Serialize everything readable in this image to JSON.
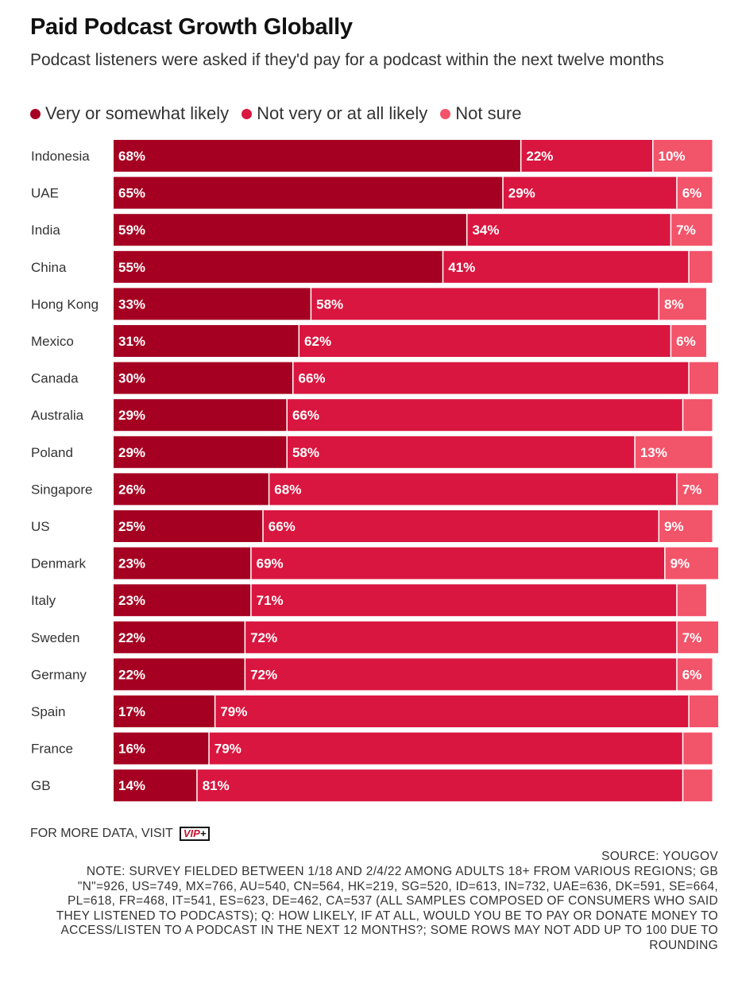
{
  "title": "Paid Podcast Growth Globally",
  "subtitle": "Podcast listeners were asked if they'd pay for a podcast within the next twelve months",
  "legend": [
    {
      "label": "Very or somewhat likely",
      "color": "#a50021"
    },
    {
      "label": "Not very or at all likely",
      "color": "#d9163f"
    },
    {
      "label": "Not sure",
      "color": "#f2546a"
    }
  ],
  "chart_data": {
    "type": "bar",
    "orientation": "horizontal",
    "stacked": true,
    "categories": [
      "Indonesia",
      "UAE",
      "India",
      "China",
      "Hong Kong",
      "Mexico",
      "Canada",
      "Australia",
      "Poland",
      "Singapore",
      "US",
      "Denmark",
      "Italy",
      "Sweden",
      "Germany",
      "Spain",
      "France",
      "GB"
    ],
    "series": [
      {
        "name": "Very or somewhat likely",
        "values": [
          68,
          65,
          59,
          55,
          33,
          31,
          30,
          29,
          29,
          26,
          25,
          23,
          23,
          22,
          22,
          17,
          16,
          14
        ]
      },
      {
        "name": "Not very or at all likely",
        "values": [
          22,
          29,
          34,
          41,
          58,
          62,
          66,
          66,
          58,
          68,
          66,
          69,
          71,
          72,
          72,
          79,
          79,
          81
        ]
      },
      {
        "name": "Not sure",
        "values": [
          10,
          6,
          7,
          4,
          8,
          6,
          5,
          5,
          13,
          7,
          9,
          9,
          5,
          7,
          6,
          5,
          5,
          5
        ]
      }
    ],
    "shown_labels": [
      [
        "68%",
        "22%",
        "10%"
      ],
      [
        "65%",
        "29%",
        "6%"
      ],
      [
        "59%",
        "34%",
        "7%"
      ],
      [
        "55%",
        "41%",
        ""
      ],
      [
        "33%",
        "58%",
        "8%"
      ],
      [
        "31%",
        "62%",
        "6%"
      ],
      [
        "30%",
        "66%",
        ""
      ],
      [
        "29%",
        "66%",
        ""
      ],
      [
        "29%",
        "58%",
        "13%"
      ],
      [
        "26%",
        "68%",
        "7%"
      ],
      [
        "25%",
        "66%",
        "9%"
      ],
      [
        "23%",
        "69%",
        "9%"
      ],
      [
        "23%",
        "71%",
        ""
      ],
      [
        "22%",
        "72%",
        "7%"
      ],
      [
        "22%",
        "72%",
        "6%"
      ],
      [
        "17%",
        "79%",
        ""
      ],
      [
        "16%",
        "79%",
        ""
      ],
      [
        "14%",
        "81%",
        ""
      ]
    ],
    "xlim": [
      0,
      100
    ],
    "grid": false,
    "legend_position": "top-left"
  },
  "footer": {
    "visit_text": "FOR MORE DATA, VISIT",
    "vip_text": "VIP",
    "vip_plus": "+",
    "source": "SOURCE: YOUGOV",
    "note": "NOTE: SURVEY FIELDED BETWEEN 1/18 AND 2/4/22 AMONG ADULTS 18+ FROM VARIOUS REGIONS; GB \"N\"=926, US=749, MX=766, AU=540, CN=564, HK=219, SG=520, ID=613, IN=732, UAE=636, DK=591, SE=664, PL=618, FR=468, IT=541, ES=623, DE=462, CA=537 (ALL SAMPLES COMPOSED OF CONSUMERS WHO SAID THEY LISTENED TO PODCASTS); Q: HOW LIKELY, IF AT ALL, WOULD YOU BE TO PAY OR DONATE MONEY TO ACCESS/LISTEN TO A PODCAST IN THE NEXT 12 MONTHS?; SOME ROWS MAY NOT ADD UP TO 100 DUE TO ROUNDING"
  }
}
